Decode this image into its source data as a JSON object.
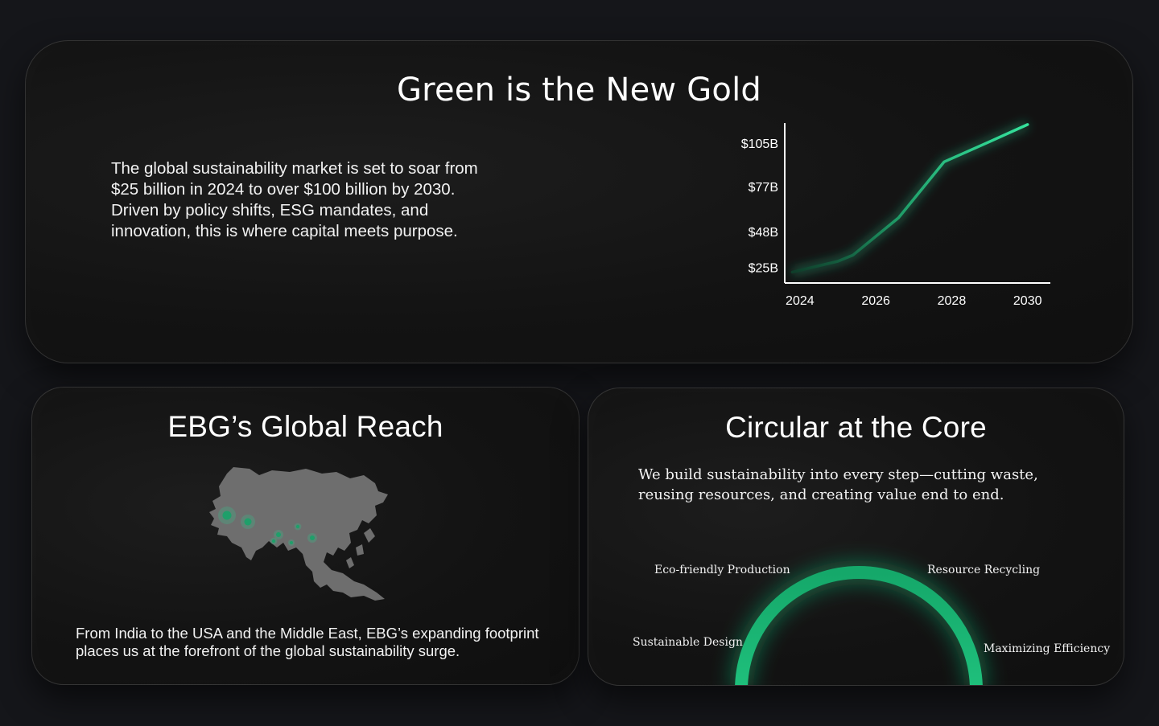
{
  "market": {
    "title": "Green is the New Gold",
    "description": "The global sustainability market is set to soar from $25 billion in 2024 to over $100 billion by 2030. Driven by policy shifts, ESG mandates, and innovation, this is where capital meets purpose."
  },
  "chart_data": {
    "type": "line",
    "title": "",
    "xlabel": "",
    "ylabel": "",
    "x_ticks": [
      "2024",
      "2026",
      "2028",
      "2030"
    ],
    "y_ticks": [
      "$25B",
      "$48B",
      "$77B",
      "$105B"
    ],
    "x_range": [
      2023.6,
      2030.6
    ],
    "y_range": [
      15,
      118
    ],
    "grid": false,
    "series": [
      {
        "color": "#2ecc8f",
        "points": [
          {
            "x": 2023.8,
            "y": 22
          },
          {
            "x": 2025.0,
            "y": 29
          },
          {
            "x": 2025.4,
            "y": 33
          },
          {
            "x": 2026.6,
            "y": 57
          },
          {
            "x": 2027.8,
            "y": 93
          },
          {
            "x": 2029.0,
            "y": 106
          },
          {
            "x": 2030.0,
            "y": 117
          }
        ]
      }
    ]
  },
  "reach": {
    "title": "EBG’s Global Reach",
    "description": "From India to the USA and the Middle East, EBG’s expanding footprint places us at the forefront of the global sustainability surge."
  },
  "circular": {
    "title": "Circular at the Core",
    "description": "We build sustainability into every step—cutting waste, reusing resources, and creating value end to end.",
    "features": [
      "Eco-friendly Production",
      "Resource Recycling",
      "Sustainable Design",
      "Maximizing Efficiency"
    ]
  },
  "colors": {
    "accent": "#2ecc8f",
    "card_border": "#2a2a2a",
    "background": "#15161a"
  },
  "icons": {
    "map": "asia-map-icon",
    "location_marker": "location-dot-icon"
  }
}
